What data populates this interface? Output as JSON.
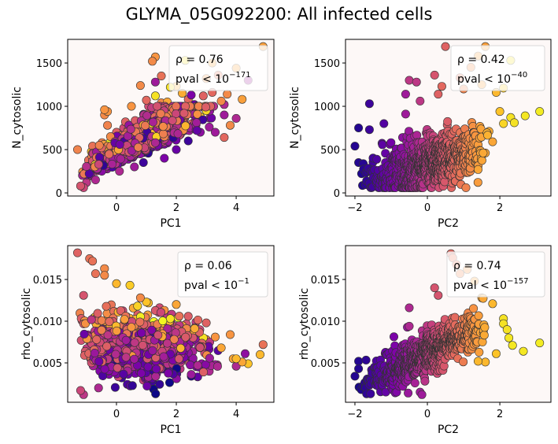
{
  "figure": {
    "title": "GLYMA_05G092200: All infected cells",
    "colormap": "plasma",
    "axes_facecolor": "#fdf8f7",
    "marker_edgecolor": "#333333"
  },
  "chart_data": [
    {
      "type": "scatter",
      "panel": "top-left",
      "xlabel": "PC1",
      "ylabel": "N_cytosolic",
      "xlim": [
        -1.63,
        5.26
      ],
      "ylim": [
        -36,
        1773
      ],
      "xticks": [
        0,
        2,
        4
      ],
      "xtick_labels": [
        "0",
        "2",
        "4"
      ],
      "yticks": [
        0,
        500,
        1000,
        1500
      ],
      "ytick_labels": [
        "0",
        "500",
        "1000",
        "1500"
      ],
      "grid": false,
      "legend": {
        "placement": "upper right",
        "rho_label": "ρ = 0.76",
        "pval_label": "pval < 10",
        "pval_exponent": "−171"
      },
      "points": [
        [
          -1.3,
          500,
          0.7
        ],
        [
          -1.2,
          80,
          0.55
        ],
        [
          -1.1,
          60,
          0.5
        ],
        [
          -1.0,
          120,
          0.45
        ],
        [
          -0.9,
          200,
          0.55
        ],
        [
          -0.9,
          280,
          0.5
        ],
        [
          -0.8,
          540,
          0.65
        ],
        [
          -0.8,
          460,
          0.7
        ],
        [
          -0.7,
          150,
          0.4
        ],
        [
          -0.6,
          300,
          0.55
        ],
        [
          -0.5,
          520,
          0.6
        ],
        [
          -0.4,
          960,
          0.75
        ],
        [
          -0.4,
          900,
          0.72
        ],
        [
          -0.3,
          940,
          0.75
        ],
        [
          -0.3,
          780,
          0.7
        ],
        [
          -0.2,
          420,
          0.55
        ],
        [
          -0.2,
          650,
          0.72
        ],
        [
          -0.1,
          350,
          0.4
        ],
        [
          0.0,
          700,
          0.6
        ],
        [
          0.0,
          480,
          0.35
        ],
        [
          0.1,
          250,
          0.4
        ],
        [
          0.2,
          580,
          0.6
        ],
        [
          0.3,
          820,
          0.6
        ],
        [
          0.3,
          400,
          0.3
        ],
        [
          0.5,
          1000,
          0.75
        ],
        [
          0.5,
          620,
          0.65
        ],
        [
          0.6,
          300,
          0.35
        ],
        [
          0.7,
          760,
          0.6
        ],
        [
          0.8,
          1240,
          0.72
        ],
        [
          0.8,
          450,
          0.3
        ],
        [
          0.9,
          350,
          0.1
        ],
        [
          1.0,
          1070,
          0.62
        ],
        [
          1.0,
          680,
          0.55
        ],
        [
          1.1,
          920,
          0.62
        ],
        [
          1.2,
          1520,
          0.72
        ],
        [
          1.3,
          1570,
          0.75
        ],
        [
          1.3,
          1120,
          0.95
        ],
        [
          1.3,
          1280,
          0.35
        ],
        [
          1.5,
          1350,
          0.65
        ],
        [
          1.5,
          1040,
          0.72
        ],
        [
          1.5,
          600,
          0.4
        ],
        [
          1.6,
          400,
          0.25
        ],
        [
          1.7,
          1050,
          0.8
        ],
        [
          1.8,
          1220,
          0.95
        ],
        [
          1.8,
          850,
          0.6
        ],
        [
          1.9,
          680,
          0.35
        ],
        [
          2.0,
          1230,
          0.82
        ],
        [
          2.0,
          500,
          0.2
        ],
        [
          2.1,
          800,
          0.55
        ],
        [
          2.2,
          1150,
          0.82
        ],
        [
          2.3,
          1530,
          0.95
        ],
        [
          2.3,
          780,
          0.88
        ],
        [
          2.4,
          1080,
          0.62
        ],
        [
          2.4,
          600,
          0.1
        ],
        [
          2.5,
          1130,
          0.25
        ],
        [
          2.6,
          900,
          0.62
        ],
        [
          2.6,
          1020,
          0.2
        ],
        [
          2.7,
          850,
          0.9
        ],
        [
          2.8,
          880,
          0.9
        ],
        [
          2.8,
          700,
          0.3
        ],
        [
          2.9,
          1120,
          0.6
        ],
        [
          3.0,
          1320,
          0.75
        ],
        [
          3.0,
          950,
          0.92
        ],
        [
          3.1,
          760,
          0.35
        ],
        [
          3.2,
          1500,
          0.8
        ],
        [
          3.2,
          1160,
          0.62
        ],
        [
          3.3,
          700,
          0.35
        ],
        [
          3.4,
          1360,
          0.65
        ],
        [
          3.5,
          1060,
          0.72
        ],
        [
          3.6,
          1020,
          0.4
        ],
        [
          3.6,
          640,
          0.62
        ],
        [
          3.6,
          900,
          0.35
        ],
        [
          3.7,
          1140,
          0.72
        ],
        [
          3.8,
          780,
          0.72
        ],
        [
          4.0,
          1440,
          0.78
        ],
        [
          4.0,
          860,
          0.4
        ],
        [
          4.2,
          1080,
          0.78
        ],
        [
          4.4,
          1300,
          0.35
        ],
        [
          4.9,
          1690,
          0.78
        ]
      ]
    },
    {
      "type": "scatter",
      "panel": "top-right",
      "xlabel": "PC2",
      "ylabel": "N_cytosolic",
      "xlim": [
        -2.26,
        3.41
      ],
      "ylim": [
        -36,
        1773
      ],
      "xticks": [
        -2,
        0,
        2
      ],
      "xtick_labels": [
        "−2",
        "0",
        "2"
      ],
      "yticks": [
        0,
        500,
        1000,
        1500
      ],
      "ytick_labels": [
        "0",
        "500",
        "1000",
        "1500"
      ],
      "grid": false,
      "legend": {
        "placement": "upper right",
        "rho_label": "ρ = 0.42",
        "pval_label": "pval  < 10",
        "pval_exponent": "−40"
      },
      "points": [
        [
          -2.0,
          540,
          0.05
        ],
        [
          -1.9,
          750,
          0.05
        ],
        [
          -1.9,
          350,
          0.05
        ],
        [
          -1.6,
          1030,
          0.1
        ],
        [
          -1.6,
          730,
          0.1
        ],
        [
          -1.2,
          800,
          0.15
        ],
        [
          -0.6,
          1140,
          0.35
        ],
        [
          -0.6,
          910,
          0.35
        ],
        [
          -0.5,
          1300,
          0.45
        ],
        [
          -0.3,
          1280,
          0.45
        ],
        [
          -0.2,
          1060,
          0.45
        ],
        [
          0.2,
          1360,
          0.55
        ],
        [
          0.3,
          1140,
          0.6
        ],
        [
          0.4,
          1230,
          0.62
        ],
        [
          0.5,
          1690,
          0.6
        ],
        [
          0.9,
          1330,
          0.65
        ],
        [
          1.0,
          1200,
          0.7
        ],
        [
          1.2,
          1450,
          0.72
        ],
        [
          1.4,
          1580,
          0.78
        ],
        [
          1.5,
          1250,
          0.78
        ],
        [
          1.6,
          1690,
          0.78
        ],
        [
          1.9,
          1160,
          0.85
        ],
        [
          2.0,
          940,
          0.88
        ],
        [
          2.1,
          1210,
          0.9
        ],
        [
          2.1,
          800,
          0.92
        ],
        [
          2.3,
          1530,
          0.95
        ],
        [
          2.3,
          870,
          0.95
        ],
        [
          2.4,
          810,
          0.95
        ],
        [
          2.7,
          890,
          0.96
        ],
        [
          3.1,
          940,
          0.97
        ],
        [
          1.4,
          270,
          0.8
        ],
        [
          1.6,
          460,
          0.8
        ],
        [
          1.8,
          590,
          0.8
        ],
        [
          1.7,
          710,
          0.82
        ]
      ]
    },
    {
      "type": "scatter",
      "panel": "bottom-left",
      "xlabel": "PC1",
      "ylabel": "rho_cytosolic",
      "xlim": [
        -1.63,
        5.26
      ],
      "ylim": [
        0.00028,
        0.01906
      ],
      "xticks": [
        0,
        2,
        4
      ],
      "xtick_labels": [
        "0",
        "2",
        "4"
      ],
      "yticks": [
        0.005,
        0.01,
        0.015
      ],
      "ytick_labels": [
        "0.005",
        "0.010",
        "0.015"
      ],
      "grid": false,
      "legend": {
        "placement": "upper right",
        "rho_label": "ρ = 0.06",
        "pval_label": "pval  < 10",
        "pval_exponent": "−1"
      },
      "points": [
        [
          -1.3,
          0.0182,
          0.6
        ],
        [
          -0.9,
          0.0175,
          0.65
        ],
        [
          -0.8,
          0.0172,
          0.65
        ],
        [
          -0.7,
          0.0157,
          0.65
        ],
        [
          -0.4,
          0.0163,
          0.72
        ],
        [
          -0.4,
          0.0155,
          0.72
        ],
        [
          -1.1,
          0.0131,
          0.55
        ],
        [
          0.45,
          0.0143,
          0.9
        ],
        [
          0.0,
          0.0145,
          0.85
        ],
        [
          1.0,
          0.0123,
          0.88
        ],
        [
          0.8,
          0.0128,
          0.72
        ],
        [
          1.6,
          0.0113,
          0.75
        ],
        [
          2.0,
          0.012,
          0.8
        ],
        [
          1.8,
          0.0103,
          0.95
        ],
        [
          2.3,
          0.009,
          0.95
        ],
        [
          2.1,
          0.0106,
          0.65
        ],
        [
          3.0,
          0.0098,
          0.6
        ],
        [
          2.9,
          0.008,
          0.95
        ],
        [
          3.3,
          0.0081,
          0.75
        ],
        [
          3.8,
          0.0084,
          0.75
        ],
        [
          3.5,
          0.0068,
          0.8
        ],
        [
          3.9,
          0.0055,
          0.8
        ],
        [
          4.0,
          0.0055,
          0.85
        ],
        [
          4.2,
          0.0051,
          0.8
        ],
        [
          4.4,
          0.0049,
          0.88
        ],
        [
          4.0,
          0.0046,
          0.4
        ],
        [
          4.3,
          0.0061,
          0.3
        ],
        [
          4.8,
          0.006,
          0.85
        ],
        [
          4.9,
          0.0072,
          0.65
        ],
        [
          2.5,
          0.0034,
          0.05
        ],
        [
          2.0,
          0.004,
          0.1
        ],
        [
          1.2,
          0.0028,
          0.1
        ],
        [
          0.9,
          0.0045,
          0.05
        ],
        [
          -1.2,
          0.0017,
          0.5
        ],
        [
          -1.1,
          0.0012,
          0.45
        ],
        [
          -0.6,
          0.002,
          0.4
        ],
        [
          3.1,
          0.004,
          0.4
        ],
        [
          3.3,
          0.0048,
          0.35
        ],
        [
          2.6,
          0.0086,
          0.8
        ]
      ]
    },
    {
      "type": "scatter",
      "panel": "bottom-right",
      "xlabel": "PC2",
      "ylabel": "rho_cytosolic",
      "xlim": [
        -2.26,
        3.41
      ],
      "ylim": [
        0.00028,
        0.01906
      ],
      "xticks": [
        -2,
        0,
        2
      ],
      "xtick_labels": [
        "−2",
        "0",
        "2"
      ],
      "yticks": [
        0.005,
        0.01,
        0.015
      ],
      "ytick_labels": [
        "0.005",
        "0.010",
        "0.015"
      ],
      "grid": false,
      "legend": {
        "placement": "upper right",
        "rho_label": "ρ = 0.74",
        "pval_label": "pval < 10",
        "pval_exponent": "−157"
      },
      "points": [
        [
          -2.0,
          0.0034,
          0.05
        ],
        [
          -1.9,
          0.0052,
          0.05
        ],
        [
          -1.9,
          0.0043,
          0.05
        ],
        [
          -0.5,
          0.0116,
          0.4
        ],
        [
          -0.5,
          0.0094,
          0.4
        ],
        [
          0.2,
          0.014,
          0.55
        ],
        [
          0.3,
          0.0131,
          0.55
        ],
        [
          0.65,
          0.0181,
          0.62
        ],
        [
          0.7,
          0.0176,
          0.65
        ],
        [
          0.8,
          0.0168,
          0.65
        ],
        [
          0.9,
          0.0157,
          0.7
        ],
        [
          1.1,
          0.0162,
          0.75
        ],
        [
          1.3,
          0.0148,
          0.78
        ],
        [
          1.8,
          0.0121,
          0.85
        ],
        [
          1.5,
          0.0128,
          0.8
        ],
        [
          2.1,
          0.0103,
          0.95
        ],
        [
          2.1,
          0.0097,
          0.95
        ],
        [
          2.2,
          0.009,
          0.95
        ],
        [
          2.25,
          0.008,
          0.96
        ],
        [
          2.35,
          0.0071,
          0.96
        ],
        [
          2.65,
          0.0064,
          0.96
        ],
        [
          3.1,
          0.0074,
          0.97
        ],
        [
          1.9,
          0.0061,
          0.88
        ],
        [
          1.6,
          0.0051,
          0.85
        ],
        [
          1.4,
          0.0052,
          0.85
        ],
        [
          -0.2,
          0.0015,
          0.35
        ],
        [
          -0.15,
          0.0012,
          0.35
        ]
      ]
    }
  ]
}
